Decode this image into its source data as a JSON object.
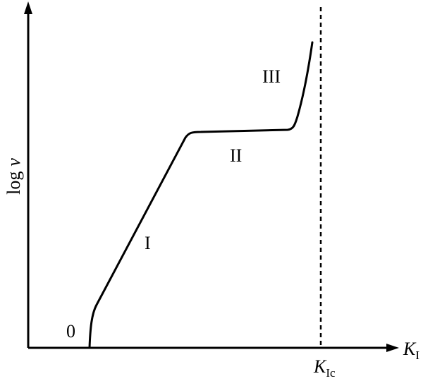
{
  "diagram": {
    "type": "crack-growth-rate-curve",
    "y_axis_label": {
      "main": "log",
      "var": "v"
    },
    "x_axis_label": {
      "main": "K",
      "sub": "I"
    },
    "critical_line_label": {
      "main": "K",
      "sub": "Ic"
    },
    "critical_line_style": "dashed",
    "regions": [
      {
        "id": "region-0",
        "label": "0"
      },
      {
        "id": "region-I",
        "label": "I"
      },
      {
        "id": "region-II",
        "label": "II"
      },
      {
        "id": "region-III",
        "label": "III"
      }
    ]
  },
  "colors": {
    "stroke": "#000000",
    "background": "#ffffff"
  }
}
